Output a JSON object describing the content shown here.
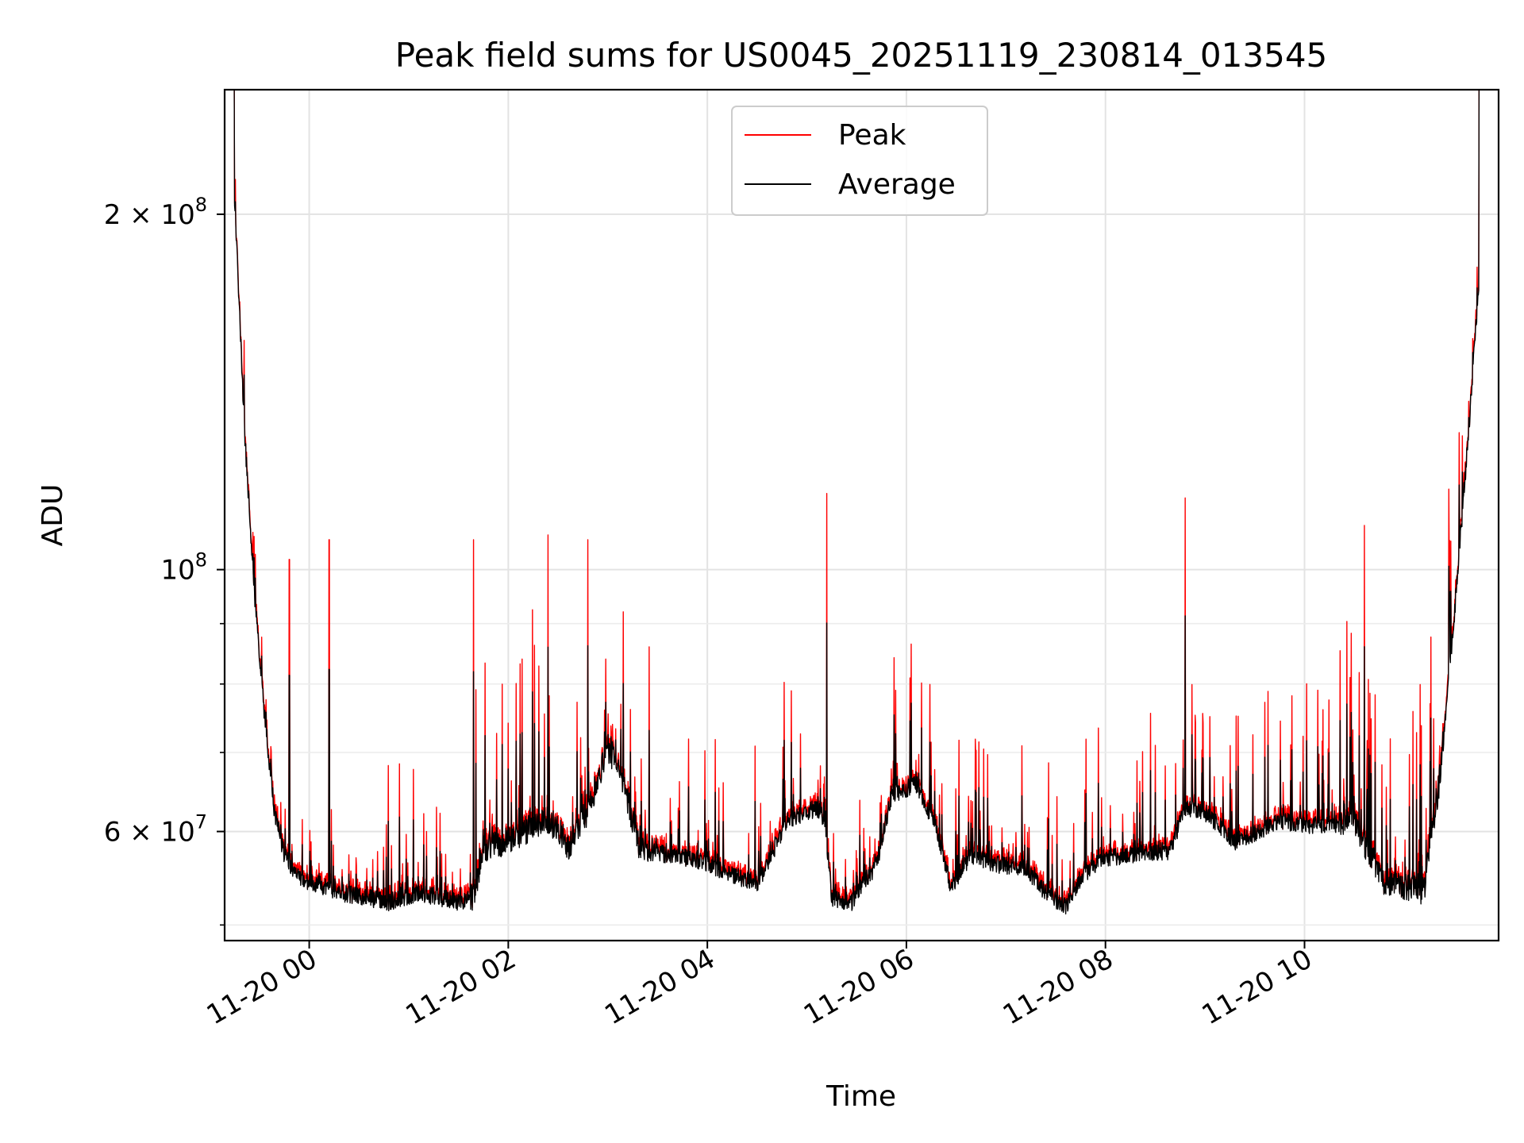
{
  "chart_data": {
    "type": "line",
    "title": "Peak field sums for US0045_20251119_230814_013545",
    "xlabel": "Time",
    "ylabel": "ADU",
    "yscale": "log",
    "ylim": [
      48500000,
      255000000
    ],
    "xlim_hours_from_1120_0000": [
      -0.85,
      11.95
    ],
    "grid": true,
    "legend_position": "top-center",
    "x_ticks": [
      {
        "hour": 0,
        "label": "11-20 00"
      },
      {
        "hour": 2,
        "label": "11-20 02"
      },
      {
        "hour": 4,
        "label": "11-20 04"
      },
      {
        "hour": 6,
        "label": "11-20 06"
      },
      {
        "hour": 8,
        "label": "11-20 08"
      },
      {
        "hour": 10,
        "label": "11-20 10"
      }
    ],
    "y_major_ticks": [
      {
        "value": 200000000,
        "base": "2 × 10",
        "exp": "8"
      },
      {
        "value": 100000000,
        "base": "10",
        "exp": "8"
      },
      {
        "value": 60000000,
        "base": "6 × 10",
        "exp": "7"
      }
    ],
    "y_minor_ticks": [
      50000000,
      70000000,
      80000000,
      90000000
    ],
    "series": [
      {
        "name": "Peak",
        "color": "#ff0000"
      },
      {
        "name": "Average",
        "color": "#000000"
      }
    ],
    "baseline_points": [
      [
        -0.85,
        255000000
      ],
      [
        -0.78,
        230000000
      ],
      [
        -0.72,
        180000000
      ],
      [
        -0.65,
        130000000
      ],
      [
        -0.55,
        95000000
      ],
      [
        -0.45,
        75000000
      ],
      [
        -0.35,
        62000000
      ],
      [
        -0.25,
        57000000
      ],
      [
        -0.1,
        54500000
      ],
      [
        0.3,
        53000000
      ],
      [
        0.8,
        52000000
      ],
      [
        1.1,
        53000000
      ],
      [
        1.5,
        52000000
      ],
      [
        1.65,
        52500000
      ],
      [
        1.75,
        57500000
      ],
      [
        2.0,
        58500000
      ],
      [
        2.3,
        60500000
      ],
      [
        2.5,
        60000000
      ],
      [
        2.6,
        57500000
      ],
      [
        2.8,
        62000000
      ],
      [
        3.0,
        70000000
      ],
      [
        3.15,
        66000000
      ],
      [
        3.3,
        58000000
      ],
      [
        3.6,
        57000000
      ],
      [
        3.9,
        56500000
      ],
      [
        4.2,
        55000000
      ],
      [
        4.5,
        54000000
      ],
      [
        4.6,
        56000000
      ],
      [
        4.8,
        61000000
      ],
      [
        5.1,
        62500000
      ],
      [
        5.18,
        61000000
      ],
      [
        5.25,
        52500000
      ],
      [
        5.45,
        52000000
      ],
      [
        5.7,
        56000000
      ],
      [
        5.85,
        64000000
      ],
      [
        6.1,
        65500000
      ],
      [
        6.3,
        60000000
      ],
      [
        6.45,
        53500000
      ],
      [
        6.65,
        57000000
      ],
      [
        6.9,
        56000000
      ],
      [
        7.2,
        55500000
      ],
      [
        7.4,
        53000000
      ],
      [
        7.6,
        51500000
      ],
      [
        7.75,
        54500000
      ],
      [
        7.95,
        56500000
      ],
      [
        8.2,
        57000000
      ],
      [
        8.65,
        57500000
      ],
      [
        8.8,
        62500000
      ],
      [
        9.0,
        62000000
      ],
      [
        9.3,
        58500000
      ],
      [
        9.5,
        59500000
      ],
      [
        9.75,
        61000000
      ],
      [
        10.0,
        60500000
      ],
      [
        10.25,
        60500000
      ],
      [
        10.5,
        61000000
      ],
      [
        10.6,
        58000000
      ],
      [
        10.8,
        54000000
      ],
      [
        11.0,
        53500000
      ],
      [
        11.2,
        53000000
      ],
      [
        11.35,
        65000000
      ],
      [
        11.5,
        90000000
      ],
      [
        11.65,
        130000000
      ],
      [
        11.8,
        200000000
      ],
      [
        11.95,
        255000000
      ]
    ],
    "flat_top_hours": [
      [
        -0.85,
        -0.75
      ],
      [
        11.75,
        11.95
      ]
    ],
    "notable_peak_spikes": [
      [
        -0.2,
        102000000
      ],
      [
        0.2,
        106000000
      ],
      [
        1.65,
        106000000
      ],
      [
        2.4,
        107000000
      ],
      [
        2.8,
        106000000
      ],
      [
        5.2,
        116000000
      ],
      [
        8.8,
        115000000
      ],
      [
        10.6,
        109000000
      ],
      [
        11.45,
        117000000
      ]
    ],
    "legend": {
      "peak_label": "Peak",
      "average_label": "Average"
    }
  }
}
